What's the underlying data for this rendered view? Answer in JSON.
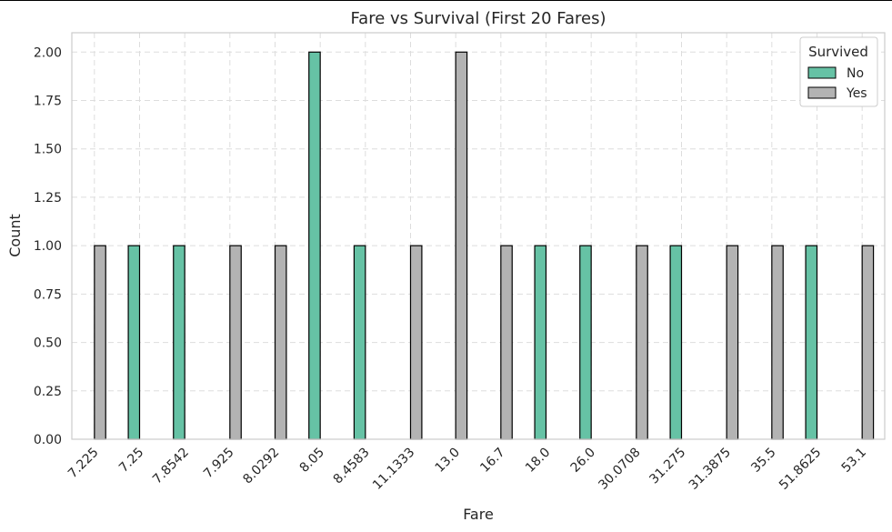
{
  "chart_data": {
    "type": "bar",
    "title": "Fare vs Survival (First 20 Fares)",
    "xlabel": "Fare",
    "ylabel": "Count",
    "ylim": [
      0,
      2.1
    ],
    "yticks": [
      "0.00",
      "0.25",
      "0.50",
      "0.75",
      "1.00",
      "1.25",
      "1.50",
      "1.75",
      "2.00"
    ],
    "grid": true,
    "legend_title": "Survived",
    "legend_position": "top-right",
    "categories": [
      "7.225",
      "7.25",
      "7.8542",
      "7.925",
      "8.0292",
      "8.05",
      "8.4583",
      "11.1333",
      "13.0",
      "16.7",
      "18.0",
      "26.0",
      "30.0708",
      "31.275",
      "31.3875",
      "35.5",
      "51.8625",
      "53.1"
    ],
    "series": [
      {
        "name": "No",
        "color": "#66c2a5",
        "values": [
          0,
          1,
          1,
          0,
          0,
          2,
          1,
          0,
          0,
          0,
          1,
          1,
          0,
          1,
          0,
          0,
          1,
          0
        ]
      },
      {
        "name": "Yes",
        "color": "#b3b3b3",
        "values": [
          1,
          0,
          0,
          1,
          1,
          0,
          0,
          1,
          2,
          1,
          0,
          0,
          1,
          0,
          1,
          1,
          0,
          1
        ]
      }
    ]
  }
}
